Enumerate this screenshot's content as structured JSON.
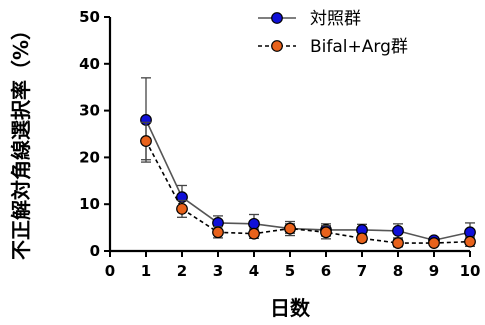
{
  "chart_data": {
    "type": "line",
    "xlabel": "日数",
    "ylabel": "不正解対角線選択率（%）",
    "xlim": [
      0,
      10
    ],
    "ylim": [
      0,
      50
    ],
    "x_ticks": [
      0,
      1,
      2,
      3,
      4,
      5,
      6,
      7,
      8,
      9,
      10
    ],
    "y_ticks": [
      0,
      10,
      20,
      30,
      40,
      50
    ],
    "legend_position": "top-right",
    "series": [
      {
        "name": "対照群",
        "color": "#1010d8",
        "line_color": "#555555",
        "line_style": "solid",
        "x": [
          1,
          2,
          3,
          4,
          5,
          6,
          7,
          8,
          9,
          10
        ],
        "values": [
          28.0,
          11.5,
          6.0,
          5.8,
          4.8,
          4.5,
          4.5,
          4.3,
          2.3,
          4.0
        ],
        "error": [
          9.0,
          2.5,
          1.5,
          2.0,
          1.5,
          1.3,
          1.2,
          1.5,
          0.6,
          2.0
        ]
      },
      {
        "name": "Bifal+Arg群",
        "color": "#e8621b",
        "line_color": "#000000",
        "line_style": "dashed",
        "x": [
          1,
          2,
          3,
          4,
          5,
          6,
          7,
          8,
          9,
          10
        ],
        "values": [
          23.5,
          9.0,
          4.0,
          3.7,
          4.8,
          4.0,
          2.7,
          1.7,
          1.7,
          2.0
        ],
        "error": [
          4.0,
          1.8,
          1.2,
          1.0,
          1.0,
          1.4,
          0.8,
          0.8,
          0.5,
          1.0
        ]
      }
    ]
  }
}
